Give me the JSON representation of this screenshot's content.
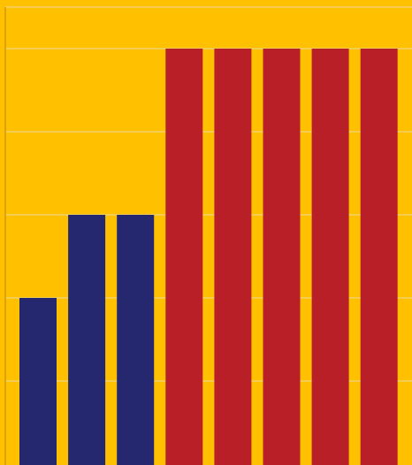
{
  "chart_data": {
    "type": "bar",
    "categories": [
      "",
      "",
      "",
      "",
      "",
      "",
      "",
      ""
    ],
    "values": [
      4,
      6,
      6,
      10,
      10,
      10,
      10,
      10
    ],
    "bar_colors": [
      "#25276F",
      "#25276F",
      "#25276F",
      "#B81F27",
      "#B81F27",
      "#B81F27",
      "#B81F27",
      "#B81F27"
    ],
    "title": "",
    "xlabel": "",
    "ylabel": "",
    "ylim": [
      0,
      11
    ],
    "grid": true,
    "background_color": "#FFC000",
    "grid_color": "#E8D7A0",
    "axis_color": "#B8860B"
  }
}
